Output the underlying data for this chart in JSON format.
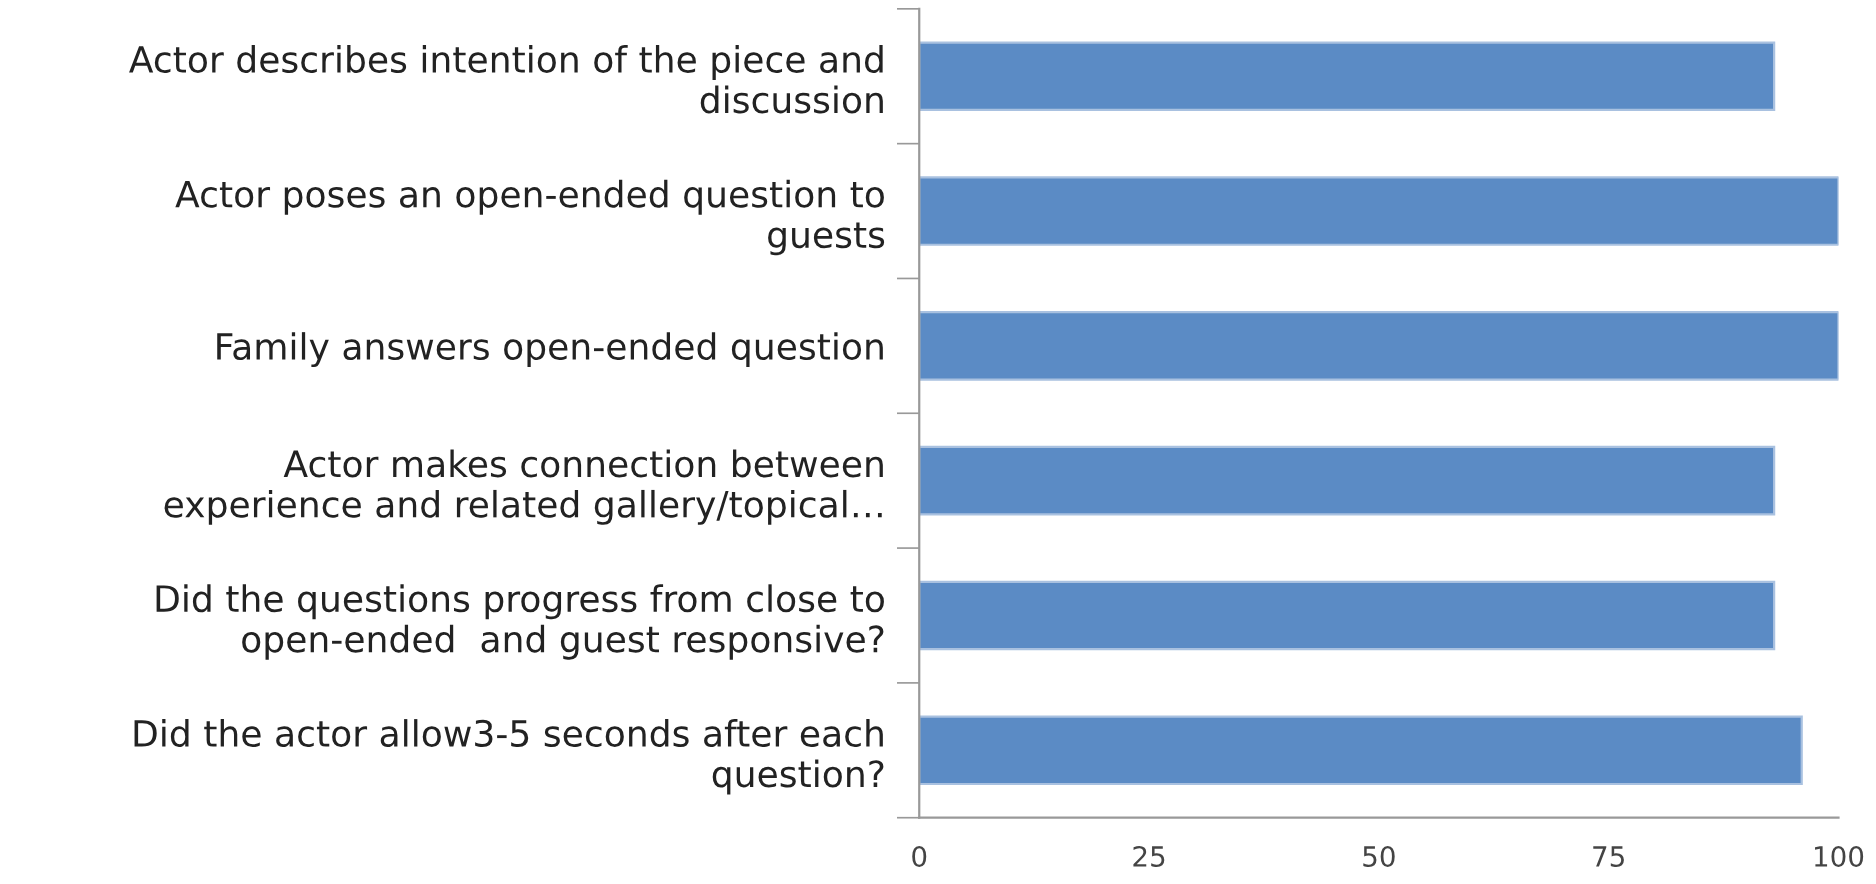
{
  "chart_data": {
    "type": "bar",
    "orientation": "horizontal",
    "categories": [
      "Actor describes intention of the piece and\ndiscussion",
      "Actor poses an open-ended question to\nguests",
      "Family answers open-ended question",
      "Actor makes connection between\nexperience and related gallery/topical…",
      "Did the questions progress from close to\nopen-ended  and guest responsive?",
      "Did the actor allow3-5 seconds after each\nquestion?"
    ],
    "values": [
      93,
      100,
      100,
      93,
      93,
      96
    ],
    "color": "#5b8bc5",
    "xlim": [
      0,
      100
    ],
    "xticks": [
      0,
      25,
      50,
      75,
      100
    ],
    "grid": false,
    "legend": false
  }
}
